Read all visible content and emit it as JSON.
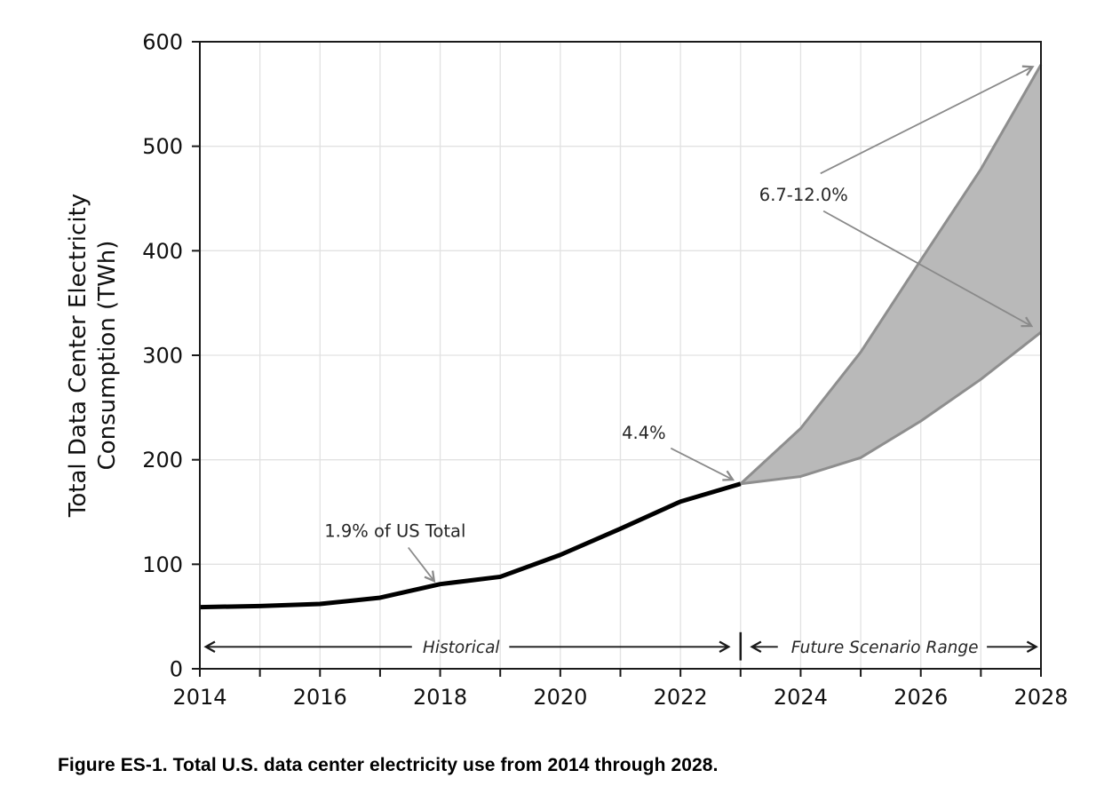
{
  "figure": {
    "caption": "Figure ES-1. Total U.S. data center electricity use from 2014 through 2028."
  },
  "chart_data": {
    "type": "line",
    "title": "",
    "xlabel": "",
    "ylabel_lines": [
      "Total Data Center Electricity",
      "Consumption (TWh)"
    ],
    "unit": "TWh",
    "xlim": [
      2014,
      2028
    ],
    "ylim": [
      0,
      600
    ],
    "grid": true,
    "x_ticks_all": [
      2014,
      2015,
      2016,
      2017,
      2018,
      2019,
      2020,
      2021,
      2022,
      2023,
      2024,
      2025,
      2026,
      2027,
      2028
    ],
    "x_ticks_labeled": [
      2014,
      2016,
      2018,
      2020,
      2022,
      2024,
      2026,
      2028
    ],
    "y_ticks": [
      0,
      100,
      200,
      300,
      400,
      500,
      600
    ],
    "series": [
      {
        "name": "Historical",
        "kind": "line",
        "x": [
          2014,
          2015,
          2016,
          2017,
          2018,
          2019,
          2020,
          2021,
          2022,
          2023
        ],
        "y": [
          59,
          60,
          62,
          68,
          81,
          88,
          109,
          134,
          160,
          177
        ]
      },
      {
        "name": "Future Scenario Range",
        "kind": "band",
        "x": [
          2023,
          2024,
          2025,
          2026,
          2027,
          2028
        ],
        "low": [
          177,
          184,
          202,
          237,
          277,
          322
        ],
        "high": [
          177,
          230,
          303,
          391,
          478,
          578
        ]
      }
    ],
    "annotations": [
      {
        "text": "1.9% of US Total",
        "x": 2017.25,
        "y": 132,
        "arrows": [
          {
            "from": [
              2017.47,
              116
            ],
            "to": [
              2017.9,
              84
            ]
          }
        ]
      },
      {
        "text": "4.4%",
        "x": 2021.39,
        "y": 226,
        "arrows": [
          {
            "from": [
              2021.84,
              211
            ],
            "to": [
              2022.87,
              181
            ]
          }
        ]
      },
      {
        "text": "6.7-12.0%",
        "x": 2024.05,
        "y": 454,
        "arrows": [
          {
            "from": [
              2024.33,
              474
            ],
            "to": [
              2027.86,
              576
            ]
          },
          {
            "from": [
              2024.38,
              438
            ],
            "to": [
              2027.84,
              328
            ]
          }
        ]
      }
    ],
    "span_labels": [
      {
        "text": "Historical",
        "style": "italic",
        "y": 21,
        "text_x": 2018.35,
        "arrows": [
          {
            "from": [
              2017.53,
              21
            ],
            "to": [
              2014.1,
              21
            ]
          },
          {
            "from": [
              2019.15,
              21
            ],
            "to": [
              2022.8,
              21
            ]
          }
        ]
      },
      {
        "text": "Future Scenario Range",
        "style": "italic",
        "y": 21,
        "text_x": 2025.4,
        "arrows": [
          {
            "from": [
              2023.62,
              21
            ],
            "to": [
              2023.19,
              21
            ]
          },
          {
            "from": [
              2027.1,
              21
            ],
            "to": [
              2027.92,
              21
            ]
          }
        ]
      }
    ],
    "divider": {
      "x": 2023,
      "y1": 8,
      "y2": 35
    },
    "colors": {
      "line": "#000000",
      "band_fill": "#b9b9b9",
      "band_edge": "#8e8e8e",
      "grid": "#e2e2e2",
      "axis": "#1a1a1a",
      "tick_text": "#111111",
      "annotation_text": "#262626",
      "annotation_arrow": "#8a8a8a",
      "span_arrow": "#1a1a1a"
    }
  }
}
